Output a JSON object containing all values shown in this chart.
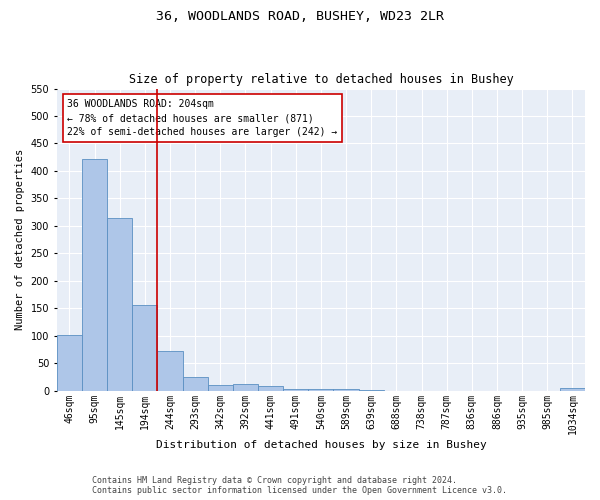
{
  "title1": "36, WOODLANDS ROAD, BUSHEY, WD23 2LR",
  "title2": "Size of property relative to detached houses in Bushey",
  "xlabel": "Distribution of detached houses by size in Bushey",
  "ylabel": "Number of detached properties",
  "footer1": "Contains HM Land Registry data © Crown copyright and database right 2024.",
  "footer2": "Contains public sector information licensed under the Open Government Licence v3.0.",
  "categories": [
    "46sqm",
    "95sqm",
    "145sqm",
    "194sqm",
    "244sqm",
    "293sqm",
    "342sqm",
    "392sqm",
    "441sqm",
    "491sqm",
    "540sqm",
    "589sqm",
    "639sqm",
    "688sqm",
    "738sqm",
    "787sqm",
    "836sqm",
    "886sqm",
    "935sqm",
    "985sqm",
    "1034sqm"
  ],
  "values": [
    101,
    422,
    315,
    155,
    72,
    25,
    11,
    12,
    9,
    3,
    3,
    3,
    1,
    0,
    0,
    0,
    0,
    0,
    0,
    0,
    4
  ],
  "bar_color": "#aec6e8",
  "bar_edge_color": "#5a8fc2",
  "bg_color": "#e8eef7",
  "vline_color": "#cc0000",
  "annotation_line1": "36 WOODLANDS ROAD: 204sqm",
  "annotation_line2": "← 78% of detached houses are smaller (871)",
  "annotation_line3": "22% of semi-detached houses are larger (242) →",
  "annotation_box_color": "#cc0000",
  "ylim": [
    0,
    550
  ],
  "yticks": [
    0,
    50,
    100,
    150,
    200,
    250,
    300,
    350,
    400,
    450,
    500,
    550
  ],
  "title1_fontsize": 9.5,
  "title2_fontsize": 8.5,
  "xlabel_fontsize": 8,
  "ylabel_fontsize": 7.5,
  "tick_fontsize": 7,
  "annotation_fontsize": 7,
  "footer_fontsize": 6
}
